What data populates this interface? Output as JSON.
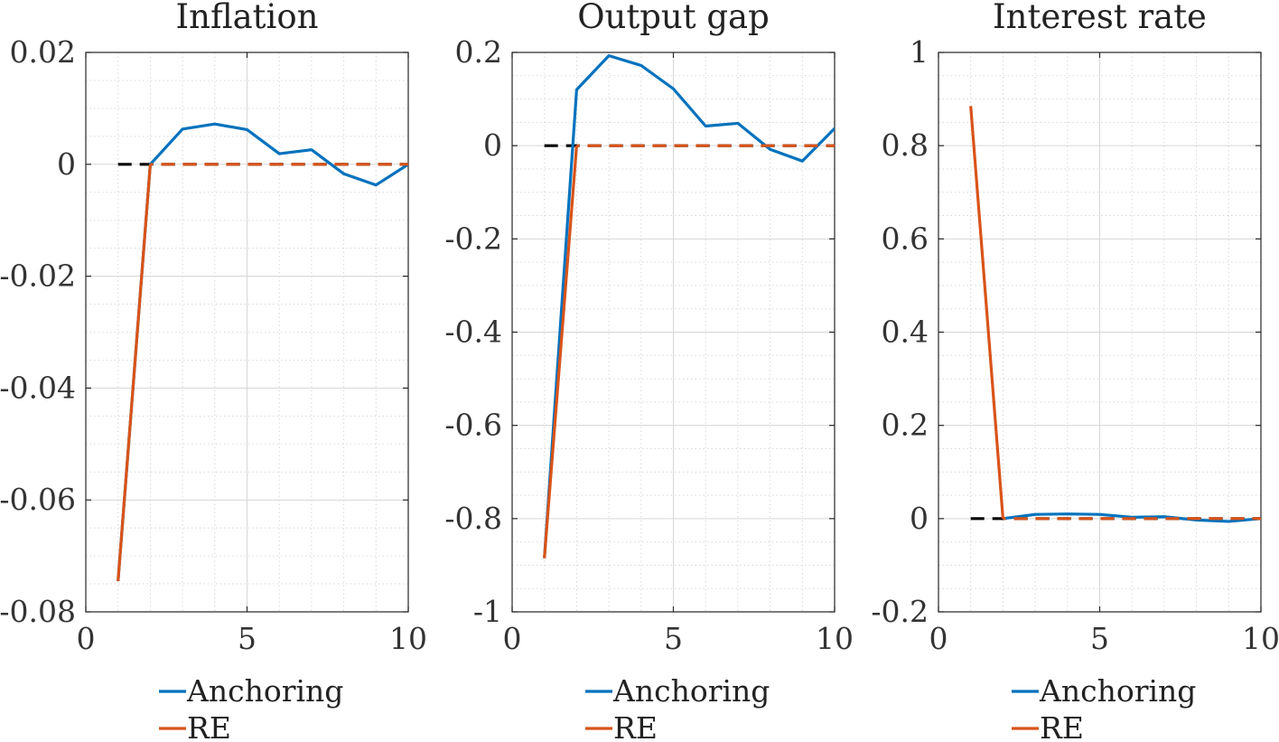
{
  "chart_data": [
    {
      "type": "line",
      "title": "Inflation",
      "xlim": [
        0,
        10
      ],
      "ylim": [
        -0.08,
        0.02
      ],
      "xticks": [
        "0",
        "5",
        "10"
      ],
      "xtick_values": [
        0,
        5,
        10
      ],
      "yticks": [
        "0.02",
        "0",
        "-0.02",
        "-0.04",
        "-0.06",
        "-0.08"
      ],
      "ytick_values": [
        0.02,
        0,
        -0.02,
        -0.04,
        -0.06,
        -0.08
      ],
      "grid": true,
      "minor_grid": true,
      "legend_position": "below",
      "series": [
        {
          "name": "Anchoring",
          "color": "#0072BD",
          "x": [
            1,
            2,
            3,
            4,
            5,
            6,
            7,
            8,
            9,
            10
          ],
          "y": [
            -0.0745,
            0,
            0.0063,
            0.0072,
            0.0062,
            0.0019,
            0.0026,
            -0.0017,
            -0.0037,
            0
          ]
        },
        {
          "name": "RE",
          "color": "#D95319",
          "x": [
            1,
            2,
            3,
            4,
            5,
            6,
            7,
            8,
            9,
            10
          ],
          "y": [
            -0.0745,
            0,
            0,
            0,
            0,
            0,
            0,
            0,
            0,
            0
          ]
        }
      ],
      "zero_line": {
        "color": "#000000",
        "x": [
          1,
          10
        ],
        "y": [
          0,
          0
        ]
      }
    },
    {
      "type": "line",
      "title": "Output gap",
      "xlim": [
        0,
        10
      ],
      "ylim": [
        -1,
        0.2
      ],
      "xticks": [
        "0",
        "5",
        "10"
      ],
      "xtick_values": [
        0,
        5,
        10
      ],
      "yticks": [
        "0.2",
        "0",
        "-0.2",
        "-0.4",
        "-0.6",
        "-0.8",
        "-1"
      ],
      "ytick_values": [
        0.2,
        0,
        -0.2,
        -0.4,
        -0.6,
        -0.8,
        -1
      ],
      "grid": true,
      "minor_grid": true,
      "legend_position": "below",
      "series": [
        {
          "name": "Anchoring",
          "color": "#0072BD",
          "x": [
            1,
            2,
            3,
            4,
            5,
            6,
            7,
            8,
            9,
            10
          ],
          "y": [
            -0.885,
            0.12,
            0.193,
            0.172,
            0.122,
            0.042,
            0.048,
            -0.008,
            -0.033,
            0.037
          ]
        },
        {
          "name": "RE",
          "color": "#D95319",
          "x": [
            1,
            2,
            3,
            4,
            5,
            6,
            7,
            8,
            9,
            10
          ],
          "y": [
            -0.885,
            0,
            0,
            0,
            0,
            0,
            0,
            0,
            0,
            0
          ]
        }
      ],
      "zero_line": {
        "color": "#000000",
        "x": [
          1,
          10
        ],
        "y": [
          0,
          0
        ]
      }
    },
    {
      "type": "line",
      "title": "Interest rate",
      "xlim": [
        0,
        10
      ],
      "ylim": [
        -0.2,
        1
      ],
      "xticks": [
        "0",
        "5",
        "10"
      ],
      "xtick_values": [
        0,
        5,
        10
      ],
      "yticks": [
        "1",
        "0.8",
        "0.6",
        "0.4",
        "0.2",
        "0",
        "-0.2"
      ],
      "ytick_values": [
        1,
        0.8,
        0.6,
        0.4,
        0.2,
        0,
        -0.2
      ],
      "grid": true,
      "minor_grid": true,
      "legend_position": "below",
      "series": [
        {
          "name": "Anchoring",
          "color": "#0072BD",
          "x": [
            2,
            3,
            4,
            5,
            6,
            7,
            8,
            9,
            10
          ],
          "y": [
            0,
            0.009,
            0.01,
            0.009,
            0.003,
            0.004,
            -0.003,
            -0.006,
            0
          ]
        },
        {
          "name": "RE",
          "color": "#D95319",
          "x": [
            1,
            2,
            3,
            4,
            5,
            6,
            7,
            8,
            9,
            10
          ],
          "y": [
            0.885,
            0,
            0,
            0,
            0,
            0,
            0,
            0,
            0,
            0
          ]
        }
      ],
      "zero_line": {
        "color": "#000000",
        "x": [
          1,
          10
        ],
        "y": [
          0,
          0
        ]
      }
    }
  ]
}
